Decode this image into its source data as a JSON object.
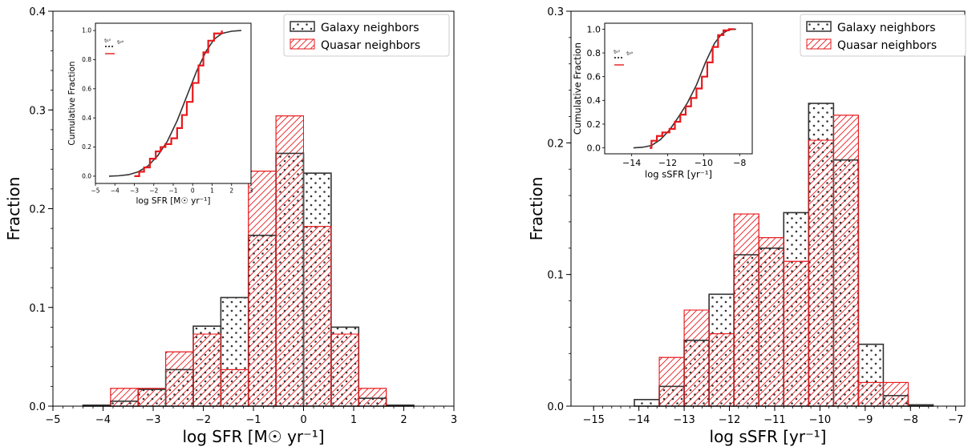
{
  "colors": {
    "galaxy": "#333333",
    "quasar": "#e8191c",
    "cdf_galaxy": "#333333",
    "cdf_quasar": "#e8191c"
  },
  "chart_data": [
    {
      "type": "bar",
      "xlabel": "log SFR [M☉ yr⁻¹]",
      "ylabel": "Fraction",
      "xlim": [
        -5,
        3
      ],
      "ylim": [
        0,
        0.4
      ],
      "xticks": [
        -5,
        -4,
        -3,
        -2,
        -1,
        0,
        1,
        2,
        3
      ],
      "yticks": [
        0.0,
        0.1,
        0.2,
        0.3,
        0.4
      ],
      "xtick_labels": [
        "−5",
        "−4",
        "−3",
        "−2",
        "−1",
        "0",
        "1",
        "2",
        "3"
      ],
      "ytick_labels": [
        "0.0",
        "0.1",
        "0.2",
        "0.3",
        "0.4"
      ],
      "bin_edges": [
        -4.4,
        -3.85,
        -3.3,
        -2.75,
        -2.2,
        -1.65,
        -1.1,
        -0.55,
        0.0,
        0.55,
        1.1,
        1.65,
        2.2
      ],
      "legend_position": "top-right",
      "grid": false,
      "series": [
        {
          "name": "Galaxy neighbors",
          "values": [
            0.001,
            0.005,
            0.017,
            0.037,
            0.081,
            0.11,
            0.173,
            0.256,
            0.236,
            0.08,
            0.008,
            0.001
          ]
        },
        {
          "name": "Quasar neighbors",
          "values": [
            0.0,
            0.018,
            0.018,
            0.055,
            0.073,
            0.037,
            0.238,
            0.294,
            0.182,
            0.073,
            0.018,
            0.0
          ]
        }
      ],
      "inset": {
        "type": "line",
        "xlabel": "log SFR [M☉ yr⁻¹]",
        "ylabel": "Cumulative Fraction",
        "xlim": [
          -5,
          3
        ],
        "ylim": [
          -0.05,
          1.05
        ],
        "xticks": [
          -5,
          -4,
          -3,
          -2,
          -1,
          0,
          1,
          2,
          3
        ],
        "xtick_labels": [
          "−5",
          "−4",
          "−3",
          "−2",
          "−1",
          "0",
          "1",
          "2",
          "3"
        ],
        "yticks": [
          0.0,
          0.2,
          0.4,
          0.6,
          0.8,
          1.0
        ],
        "ytick_labels": [
          "0.0",
          "0.2",
          "0.4",
          "0.6",
          "0.8",
          "1.0"
        ],
        "legend_labels": [
          "δ₁₀",
          "δ₃₄"
        ],
        "galaxy_cdf": {
          "x": [
            -4.3,
            -3.8,
            -3.3,
            -2.8,
            -2.3,
            -1.8,
            -1.3,
            -0.8,
            -0.3,
            0.2,
            0.7,
            1.1,
            1.5,
            2.0,
            2.5
          ],
          "y": [
            0.0,
            0.003,
            0.01,
            0.03,
            0.07,
            0.14,
            0.24,
            0.38,
            0.55,
            0.72,
            0.86,
            0.94,
            0.98,
            0.995,
            1.0
          ]
        },
        "quasar_cdf": {
          "x": [
            -3.0,
            -2.75,
            -2.5,
            -2.2,
            -1.9,
            -1.65,
            -1.4,
            -1.1,
            -0.8,
            -0.55,
            -0.3,
            0.0,
            0.3,
            0.55,
            0.8,
            1.1,
            1.5
          ],
          "y": [
            0.0,
            0.03,
            0.06,
            0.12,
            0.17,
            0.2,
            0.22,
            0.26,
            0.33,
            0.42,
            0.51,
            0.64,
            0.76,
            0.85,
            0.93,
            0.98,
            1.0
          ]
        }
      }
    },
    {
      "type": "bar",
      "xlabel": "log sSFR [yr⁻¹]",
      "ylabel": "Fraction",
      "xlim": [
        -15.5,
        -6.8
      ],
      "ylim": [
        0,
        0.3
      ],
      "xticks": [
        -15,
        -14,
        -13,
        -12,
        -11,
        -10,
        -9,
        -8,
        -7
      ],
      "yticks": [
        0.0,
        0.1,
        0.2,
        0.3
      ],
      "xtick_labels": [
        "−15",
        "−14",
        "−13",
        "−12",
        "−11",
        "−10",
        "−9",
        "−8",
        "−7"
      ],
      "ytick_labels": [
        "0.0",
        "0.1",
        "0.2",
        "0.3"
      ],
      "bin_edges": [
        -14.1,
        -13.55,
        -13.0,
        -12.45,
        -11.9,
        -11.35,
        -10.8,
        -10.25,
        -9.7,
        -9.15,
        -8.6,
        -8.05,
        -7.5
      ],
      "legend_position": "top-right",
      "grid": false,
      "series": [
        {
          "name": "Galaxy neighbors",
          "values": [
            0.005,
            0.015,
            0.05,
            0.085,
            0.115,
            0.12,
            0.147,
            0.23,
            0.187,
            0.047,
            0.008,
            0.001
          ]
        },
        {
          "name": "Quasar neighbors",
          "values": [
            0.0,
            0.037,
            0.073,
            0.055,
            0.146,
            0.128,
            0.11,
            0.202,
            0.221,
            0.018,
            0.018,
            0.0
          ]
        }
      ],
      "inset": {
        "type": "line",
        "xlabel": "log sSFR [yr⁻¹]",
        "ylabel": "Cumulative Fraction",
        "xlim": [
          -15.5,
          -7.3
        ],
        "ylim": [
          -0.05,
          1.05
        ],
        "xticks": [
          -14,
          -12,
          -10,
          -8
        ],
        "xtick_labels": [
          "−14",
          "−12",
          "−10",
          "−8"
        ],
        "yticks": [
          0.0,
          0.2,
          0.4,
          0.6,
          0.8,
          1.0
        ],
        "ytick_labels": [
          "0.0",
          "0.2",
          "0.4",
          "0.6",
          "0.8",
          "1.0"
        ],
        "legend_labels": [
          "δ₁₀",
          "δ₃₄"
        ],
        "galaxy_cdf": {
          "x": [
            -13.9,
            -13.4,
            -12.9,
            -12.4,
            -11.9,
            -11.4,
            -10.9,
            -10.4,
            -9.9,
            -9.4,
            -9.0,
            -8.6,
            -8.2
          ],
          "y": [
            0.0,
            0.005,
            0.02,
            0.07,
            0.15,
            0.26,
            0.38,
            0.53,
            0.72,
            0.88,
            0.96,
            0.995,
            1.0
          ]
        },
        "quasar_cdf": {
          "x": [
            -13.0,
            -12.9,
            -12.6,
            -12.3,
            -11.9,
            -11.6,
            -11.3,
            -11.0,
            -10.7,
            -10.4,
            -10.1,
            -9.8,
            -9.5,
            -9.2,
            -8.9,
            -8.6,
            -8.3
          ],
          "y": [
            0.0,
            0.06,
            0.1,
            0.13,
            0.16,
            0.22,
            0.28,
            0.35,
            0.42,
            0.5,
            0.6,
            0.72,
            0.85,
            0.95,
            0.99,
            1.0,
            1.0
          ]
        }
      }
    }
  ]
}
